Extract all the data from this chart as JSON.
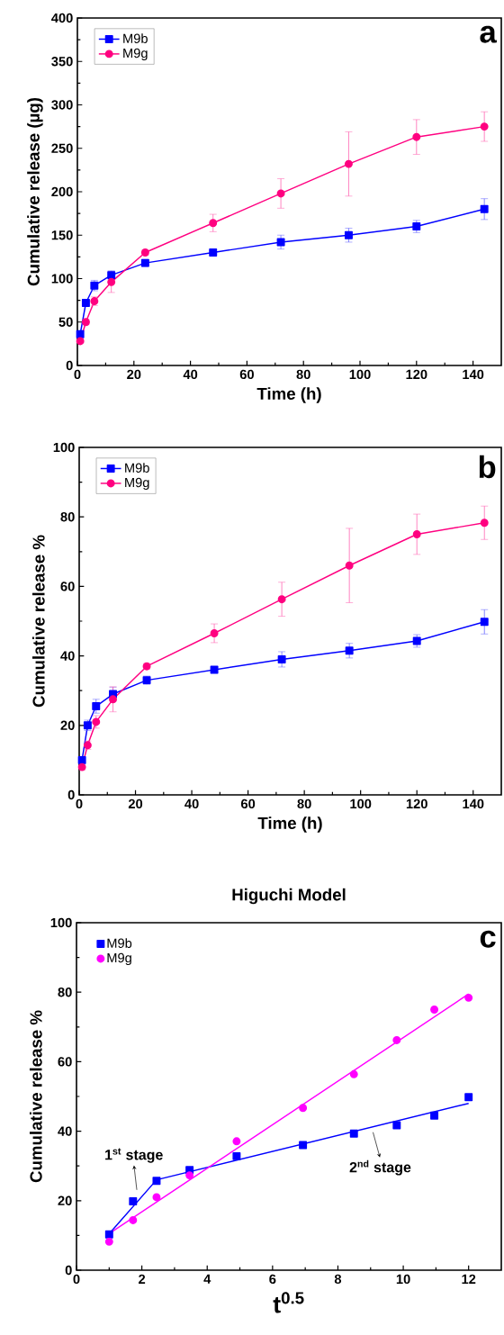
{
  "chart_data": [
    {
      "type": "line",
      "xlabel": "Time (h)",
      "ylabel": "Cumulative release (µg)",
      "x": [
        1,
        3,
        6,
        12,
        24,
        48,
        72,
        96,
        120,
        144
      ],
      "xlim": [
        0,
        150
      ],
      "ylim": [
        0,
        400
      ],
      "xticks": [
        0,
        20,
        40,
        60,
        80,
        100,
        120,
        140
      ],
      "yticks": [
        0,
        50,
        100,
        150,
        200,
        250,
        300,
        350,
        400
      ],
      "legend": "top left",
      "annotations": [
        "a"
      ],
      "series": [
        {
          "name": "M9b",
          "color": "#0000ff",
          "marker": "square",
          "values": [
            36,
            72,
            92,
            104,
            118,
            130,
            142,
            150,
            160,
            180
          ],
          "errors": [
            3,
            4,
            6,
            5,
            4,
            2,
            8,
            8,
            7,
            12
          ]
        },
        {
          "name": "M9g",
          "color": "#ff0080",
          "marker": "circle",
          "values": [
            28,
            50,
            74,
            96,
            130,
            164,
            198,
            232,
            263,
            275
          ],
          "errors": [
            2,
            3,
            5,
            12,
            3,
            10,
            17,
            37,
            20,
            17
          ]
        }
      ]
    },
    {
      "type": "line",
      "xlabel": "Time (h)",
      "ylabel": "Cumulative release %",
      "x": [
        1,
        3,
        6,
        12,
        24,
        48,
        72,
        96,
        120,
        144
      ],
      "xlim": [
        0,
        150
      ],
      "ylim": [
        0,
        100
      ],
      "xticks": [
        0,
        20,
        40,
        60,
        80,
        100,
        120,
        140
      ],
      "yticks": [
        0,
        20,
        40,
        60,
        80,
        100
      ],
      "legend": "top left",
      "annotations": [
        "b"
      ],
      "series": [
        {
          "name": "M9b",
          "color": "#0000ff",
          "marker": "square",
          "values": [
            10,
            20,
            25.5,
            29,
            33,
            36,
            39,
            41.5,
            44.3,
            49.8
          ],
          "errors": [
            1,
            1.5,
            2,
            2,
            1.2,
            0.8,
            2.2,
            2.1,
            1.8,
            3.5
          ]
        },
        {
          "name": "M9g",
          "color": "#ff0080",
          "marker": "circle",
          "values": [
            8,
            14.3,
            21,
            27.5,
            37,
            46.5,
            56.3,
            66,
            75,
            78.3
          ],
          "errors": [
            0.8,
            1.2,
            1.8,
            3.6,
            0.8,
            2.7,
            4.9,
            10.7,
            5.8,
            4.8
          ]
        }
      ]
    },
    {
      "type": "scatter",
      "title": "Higuchi Model",
      "xlabel": "t$^{0.5}$",
      "ylabel": "Cumulative release %",
      "x": [
        1,
        1.73,
        2.45,
        3.46,
        4.9,
        6.93,
        8.49,
        9.8,
        10.95,
        12
      ],
      "xlim": [
        0,
        13
      ],
      "ylim": [
        0,
        100
      ],
      "xticks": [
        0,
        2,
        4,
        6,
        8,
        10,
        12
      ],
      "yticks": [
        0,
        20,
        40,
        60,
        80,
        100
      ],
      "legend": "top left",
      "annotations": [
        "1$^{st}$ stage",
        "2$^{nd}$ stage",
        "c"
      ],
      "series": [
        {
          "name": "M9b",
          "color": "#0000ff",
          "marker": "square",
          "values": [
            10.3,
            19.8,
            25.7,
            28.8,
            32.8,
            36.0,
            39.3,
            41.7,
            44.5,
            49.8
          ]
        },
        {
          "name": "M9g",
          "color": "#ff00ff",
          "marker": "circle",
          "values": [
            8.2,
            14.4,
            21,
            27.3,
            37.1,
            46.7,
            56.4,
            66.2,
            75,
            78.4
          ]
        },
        {
          "type": "line",
          "color": "#0000ff",
          "marker": "none",
          "x": [
            1,
            2.45,
            12
          ],
          "values": [
            10.5,
            26,
            48
          ]
        },
        {
          "type": "line",
          "color": "#ff00ff",
          "marker": "none",
          "x": [
            1,
            12
          ],
          "values": [
            10.5,
            79.5
          ]
        }
      ]
    }
  ]
}
